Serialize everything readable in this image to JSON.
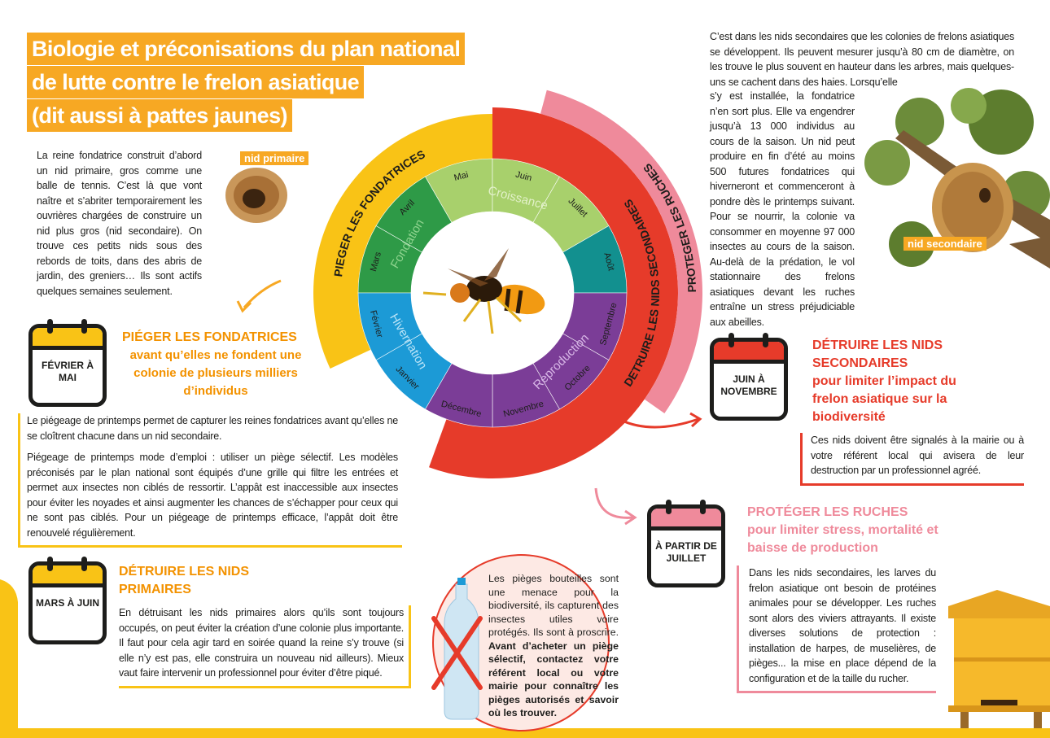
{
  "header": {
    "title": [
      "Biologie et préconisations du plan national",
      "de lutte contre le frelon asiatique",
      "(dit aussi à pattes jaunes)"
    ]
  },
  "intro": "La reine fondatrice construit d’abord un nid primaire, gros comme une balle de tennis. C’est là que vont naître et s’abriter temporairement les ouvrières chargées de construire un nid plus gros (nid secondaire). On trouve ces petits nids sous des rebords de toits, dans des abris de jardin, des greniers… Ils sont actifs quelques semaines seulement.",
  "labels": {
    "primary_nest": "nid primaire",
    "secondary_nest": "nid secondaire"
  },
  "secondary_text": {
    "top": "C’est dans les nids secondaires que les colonies de frelons asiatiques se développent. Ils peuvent mesurer jusqu’à 80 cm de diamètre, on les trouve le plus souvent en hauteur dans les arbres, mais quelques-uns se cachent dans des haies. Lorsqu’elle",
    "side": "s’y est installée, la fondatrice n’en sort plus. Elle va engendrer jusqu’à 13 000 individus au cours de la saison. Un nid peut produire en fin d’été au moins 500 futures fondatrices qui hiverneront et commenceront à pondre dès le printemps suivant. Pour se nourrir, la colonie va consommer en moyenne 97 000 insectes au cours de la saison. Au-delà de la prédation, le vol stationnaire des frelons asiatiques devant les ruches entraîne un stress préjudiciable aux abeilles."
  },
  "cycle": {
    "actions": [
      {
        "name": "PIEGER LES FONDATRICES",
        "color": "#f9c316"
      },
      {
        "name": "DETRUIRE LES NIDS SECONDAIRES",
        "color": "#e63b2a"
      },
      {
        "name": "PROTEGER LES RUCHES",
        "color": "#ef8a9b"
      }
    ],
    "phases": [
      {
        "name": "Fondation",
        "label_color": "#8fd48f",
        "months": [
          {
            "name": "Mars",
            "color": "#2e9a47"
          },
          {
            "name": "Avril",
            "color": "#2e9a47"
          }
        ]
      },
      {
        "name": "Croissance",
        "label_color": "#e2f1c8",
        "months": [
          {
            "name": "Mai",
            "color": "#a8d06c"
          },
          {
            "name": "Juin",
            "color": "#a8d06c"
          },
          {
            "name": "Juillet",
            "color": "#a8d06c"
          }
        ]
      },
      {
        "name": "Reproduction",
        "label_color": "#d9b8e8",
        "months": [
          {
            "name": "Août",
            "color": "#12908f"
          },
          {
            "name": "Septembre",
            "color": "#7b3d97"
          },
          {
            "name": "Octobre",
            "color": "#7b3d97"
          },
          {
            "name": "Novembre",
            "color": "#7b3d97"
          },
          {
            "name": "Décembre",
            "color": "#7b3d97"
          }
        ]
      },
      {
        "name": "Hivernation",
        "label_color": "#b9e3f7",
        "months": [
          {
            "name": "Janvier",
            "color": "#1c9ad6"
          },
          {
            "name": "Février",
            "color": "#1c9ad6"
          }
        ]
      }
    ]
  },
  "sections": [
    {
      "period": "FÉVRIER À MAI",
      "title": "PIÉGER LES FONDATRICES",
      "subtitle": "avant qu’elles ne fondent une colonie de plusieurs milliers d’individus",
      "paragraphs": [
        "Le piégeage de printemps permet de capturer les reines fondatrices avant qu’elles ne se cloîtrent chacune dans un nid secondaire.",
        "Piégeage de printemps mode d’emploi : utiliser un piège sélectif. Les modèles préconisés par le plan national sont équipés d’une grille qui filtre les entrées et permet aux insectes non ciblés de ressortir. L’appât est inaccessible aux insectes pour éviter les noyades et ainsi augmenter les chances de s’échapper pour ceux qui ne sont pas ciblés. Pour un piégeage de printemps efficace, l’appât doit être renouvelé régulièrement."
      ]
    },
    {
      "period": "MARS À JUIN",
      "title": "DÉTRUIRE LES NIDS PRIMAIRES",
      "paragraphs": [
        "En détruisant les nids primaires alors qu’ils sont toujours occupés, on peut éviter la création d’une colonie plus importante. Il faut pour cela agir tard en soirée quand la reine s’y trouve (si elle n’y est pas, elle construira un nouveau nid ailleurs). Mieux vaut faire intervenir un professionnel pour éviter d’être piqué."
      ]
    },
    {
      "period": "JUIN À NOVEMBRE",
      "title": "DÉTRUIRE LES NIDS SECONDAIRES",
      "subtitle": "pour limiter l’impact du frelon asiatique sur la biodiversité",
      "paragraphs": [
        "Ces nids doivent être signalés à la mairie ou à votre référent local qui avisera de leur destruction par un professionnel agréé."
      ]
    },
    {
      "period": "À PARTIR DE JUILLET",
      "title": "PROTÉGER LES RUCHES",
      "subtitle": "pour limiter stress, mortalité et baisse de production",
      "paragraphs": [
        "Dans les nids secondaires, les larves du frelon asiatique ont besoin de protéines animales pour se développer. Les ruches sont alors des viviers attrayants. Il existe diverses solutions de protection : installation de harpes, de muselières, de pièges... la mise en place dépend de la configuration et de la taille du rucher."
      ]
    }
  ],
  "bottle": {
    "text": "Les pièges bouteilles sont une menace pour la biodiversité, ils capturent des insectes utiles voire protégés. Ils sont à proscrire.",
    "bold": "Avant d’acheter un piège sélectif, contactez votre référent local ou votre mairie pour connaître les pièges autorisés et savoir où les trouver."
  }
}
